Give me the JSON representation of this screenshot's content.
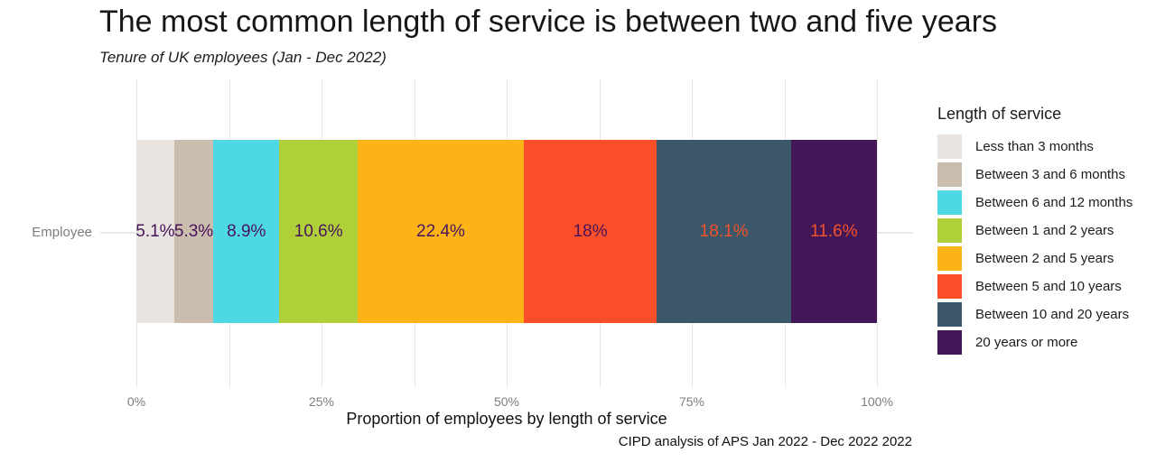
{
  "title": "The most common length of service is between two and five years",
  "subtitle": "Tenure of UK employees (Jan - Dec 2022)",
  "y_axis": {
    "category_label": "Employee"
  },
  "x_axis": {
    "label": "Proportion of employees by length of service",
    "ticks": [
      {
        "value": 0,
        "label": "0%"
      },
      {
        "value": 25,
        "label": "25%"
      },
      {
        "value": 50,
        "label": "50%"
      },
      {
        "value": 75,
        "label": "75%"
      },
      {
        "value": 100,
        "label": "100%"
      }
    ]
  },
  "caption": "CIPD analysis of APS Jan 2022 - Dec 2022 2022",
  "legend": {
    "title": "Length of service",
    "position": "right"
  },
  "colors": {
    "grid": "#e8e8e8",
    "tick_text": "#7d7d7d",
    "dark_label": "#47145c",
    "orange_label": "#f3512b"
  },
  "chart_data": {
    "type": "bar",
    "subtype": "horizontal-stacked",
    "title": "The most common length of service is between two and five years",
    "subtitle": "Tenure of UK employees (Jan - Dec 2022)",
    "xlabel": "Proportion of employees by length of service",
    "categories": [
      "Employee"
    ],
    "series": [
      {
        "name": "Less than 3 months",
        "value": 5.1,
        "label": "5.1%",
        "color": "#e9e4df",
        "label_color": "#47145c"
      },
      {
        "name": "Between 3 and 6 months",
        "value": 5.3,
        "label": "5.3%",
        "color": "#cbbdae",
        "label_color": "#47145c"
      },
      {
        "name": "Between 6 and 12 months",
        "value": 8.9,
        "label": "8.9%",
        "color": "#4ed8e4",
        "label_color": "#47145c"
      },
      {
        "name": "Between 1 and 2 years",
        "value": 10.6,
        "label": "10.6%",
        "color": "#b0d03a",
        "label_color": "#47145c"
      },
      {
        "name": "Between 2 and 5 years",
        "value": 22.4,
        "label": "22.4%",
        "color": "#fcb316",
        "label_color": "#47145c"
      },
      {
        "name": "Between 5 and 10 years",
        "value": 18.0,
        "label": "18%",
        "color": "#fc4e28",
        "label_color": "#47145c"
      },
      {
        "name": "Between 10 and 20 years",
        "value": 18.1,
        "label": "18.1%",
        "color": "#3b5769",
        "label_color": "#f3512b"
      },
      {
        "name": "20 years or more",
        "value": 11.6,
        "label": "11.6%",
        "color": "#421657",
        "label_color": "#f3512b"
      }
    ],
    "xlim": [
      0,
      100
    ],
    "x_ticks_percent": [
      0,
      25,
      50,
      75,
      100
    ],
    "minor_grid_step_percent": 12.5,
    "grid": true,
    "legend_position": "right",
    "source_caption": "CIPD analysis of APS Jan 2022 - Dec 2022 2022"
  }
}
